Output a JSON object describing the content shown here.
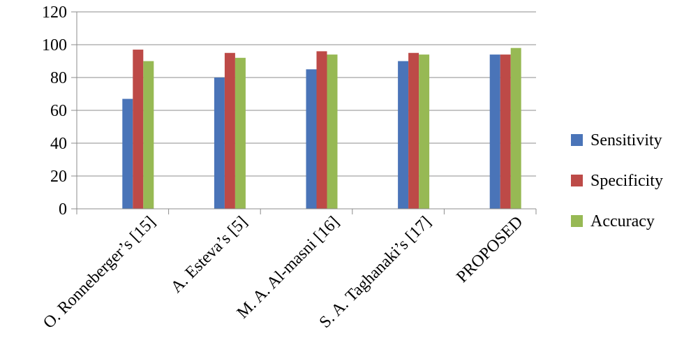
{
  "chart_data": {
    "type": "bar",
    "categories": [
      "O. Ronneberger's [15]",
      "A. Esteva's [5]",
      "M. A. Al-masni [16]",
      "S. A. Taghanaki's [17]",
      "PROPOSED"
    ],
    "series": [
      {
        "name": "Sensitivity",
        "values": [
          67,
          80,
          85,
          90,
          94
        ],
        "color": "#4a74b8"
      },
      {
        "name": "Specificity",
        "values": [
          97,
          95,
          96,
          95,
          94
        ],
        "color": "#bd4a47"
      },
      {
        "name": "Accuracy",
        "values": [
          90,
          92,
          94,
          94,
          98
        ],
        "color": "#97b954"
      }
    ],
    "ylim": [
      0,
      120
    ],
    "yticks": [
      0,
      20,
      40,
      60,
      80,
      100,
      120
    ],
    "grid": true,
    "legend_position": "right"
  }
}
